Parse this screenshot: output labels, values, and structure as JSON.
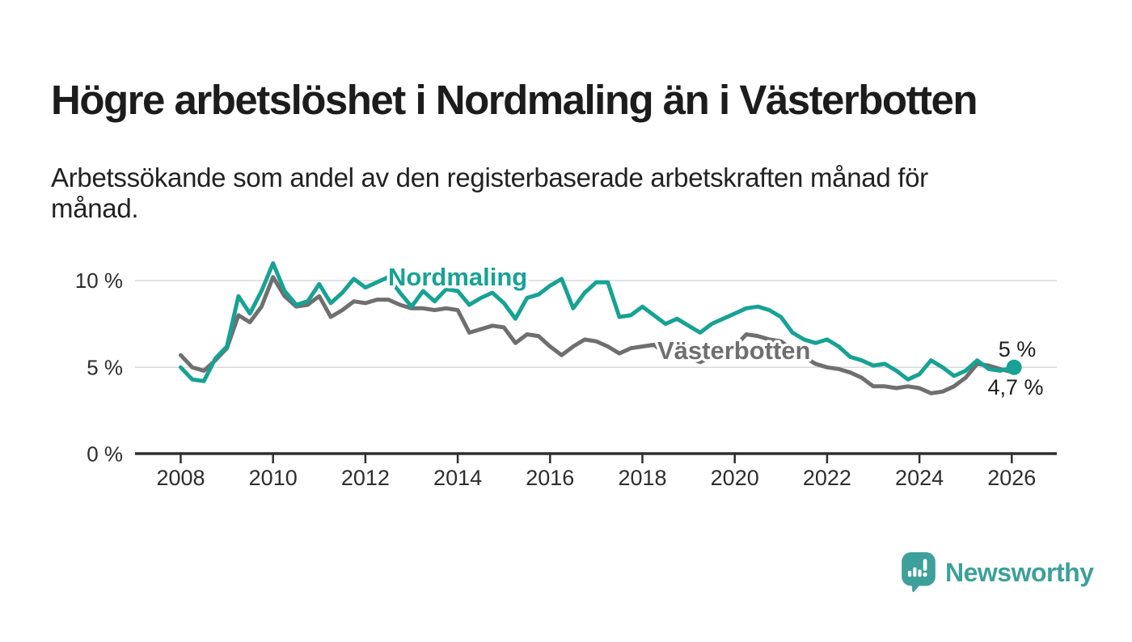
{
  "header": {
    "title": "Högre arbetslöshet i Nordmaling än i Västerbotten",
    "subtitle_lines": [
      "Arbetssökande som andel av den registerbaserade arbetskraften månad för",
      "månad."
    ]
  },
  "footer": {
    "brand": "Newsworthy"
  },
  "colors": {
    "nordmaling": "#17a294",
    "vasterbotten": "#6f6f6f",
    "grid": "#d8d8d8",
    "axis": "#2f2f2f",
    "text": "#1d1d1d",
    "brand": "#3da09a",
    "background": "#ffffff"
  },
  "chart_data": {
    "type": "line",
    "title": "Högre arbetslöshet i Nordmaling än i Västerbotten",
    "subtitle": "Arbetssökande som andel av den registerbaserade arbetskraften månad för månad.",
    "xlabel": "",
    "ylabel": "",
    "ylim": [
      0,
      12
    ],
    "grid": "horizontal",
    "legend": "inline-labels",
    "x_tick_years": [
      2008,
      2010,
      2012,
      2014,
      2016,
      2018,
      2020,
      2022,
      2024,
      2026
    ],
    "y_ticks": [
      {
        "label": "0 %",
        "value": 0
      },
      {
        "label": "5 %",
        "value": 5
      },
      {
        "label": "10 %",
        "value": 10
      }
    ],
    "x": [
      2008,
      2008.25,
      2008.5,
      2008.75,
      2009,
      2009.25,
      2009.5,
      2009.75,
      2010,
      2010.25,
      2010.5,
      2010.75,
      2011,
      2011.25,
      2011.5,
      2011.75,
      2012,
      2012.25,
      2012.5,
      2012.75,
      2013,
      2013.25,
      2013.5,
      2013.75,
      2014,
      2014.25,
      2014.5,
      2014.75,
      2015,
      2015.25,
      2015.5,
      2015.75,
      2016,
      2016.25,
      2016.5,
      2016.75,
      2017,
      2017.25,
      2017.5,
      2017.75,
      2018,
      2018.25,
      2018.5,
      2018.75,
      2019,
      2019.25,
      2019.5,
      2019.75,
      2020,
      2020.25,
      2020.5,
      2020.75,
      2021,
      2021.25,
      2021.5,
      2021.75,
      2022,
      2022.25,
      2022.5,
      2022.75,
      2023,
      2023.25,
      2023.5,
      2023.75,
      2024,
      2024.25,
      2024.5,
      2024.75,
      2025,
      2025.25,
      2025.5,
      2025.75,
      2026.05
    ],
    "series": [
      {
        "name": "Nordmaling",
        "color": "#17a294",
        "end_value_label": "5 %",
        "values": [
          5.0,
          4.3,
          4.2,
          5.5,
          6.2,
          9.1,
          8.1,
          9.4,
          11.0,
          9.4,
          8.6,
          8.8,
          9.8,
          8.7,
          9.3,
          10.1,
          9.6,
          9.9,
          10.2,
          9.3,
          8.5,
          9.4,
          8.8,
          9.5,
          9.4,
          8.6,
          9.0,
          9.3,
          8.7,
          7.8,
          9.0,
          9.2,
          9.7,
          10.1,
          8.4,
          9.3,
          9.9,
          9.9,
          7.9,
          8.0,
          8.5,
          8.0,
          7.5,
          7.8,
          7.4,
          7.0,
          7.5,
          7.8,
          8.1,
          8.4,
          8.5,
          8.3,
          7.9,
          7.0,
          6.6,
          6.4,
          6.6,
          6.2,
          5.6,
          5.4,
          5.1,
          5.2,
          4.8,
          4.3,
          4.6,
          5.4,
          5.0,
          4.5,
          4.8,
          5.4,
          4.9,
          4.8,
          5.0
        ]
      },
      {
        "name": "Västerbotten",
        "color": "#6f6f6f",
        "end_value_label": "4,7 %",
        "values": [
          5.7,
          5.0,
          4.8,
          5.4,
          6.1,
          8.0,
          7.6,
          8.5,
          10.2,
          9.1,
          8.5,
          8.6,
          9.1,
          7.9,
          8.3,
          8.8,
          8.7,
          8.9,
          8.9,
          8.6,
          8.4,
          8.4,
          8.3,
          8.4,
          8.3,
          7.0,
          7.2,
          7.4,
          7.3,
          6.4,
          6.9,
          6.8,
          6.2,
          5.7,
          6.2,
          6.6,
          6.5,
          6.2,
          5.8,
          6.1,
          6.2,
          6.3,
          5.8,
          6.0,
          5.6,
          5.3,
          5.6,
          5.8,
          6.2,
          6.9,
          6.8,
          6.6,
          6.5,
          6.0,
          5.6,
          5.2,
          5.0,
          4.9,
          4.7,
          4.4,
          3.9,
          3.9,
          3.8,
          3.9,
          3.8,
          3.5,
          3.6,
          3.9,
          4.4,
          5.2,
          5.1,
          4.9,
          4.7
        ]
      }
    ],
    "annotations": {
      "end_value_nordmaling": "5 %",
      "end_value_vasterbotten": "4,7 %"
    }
  }
}
